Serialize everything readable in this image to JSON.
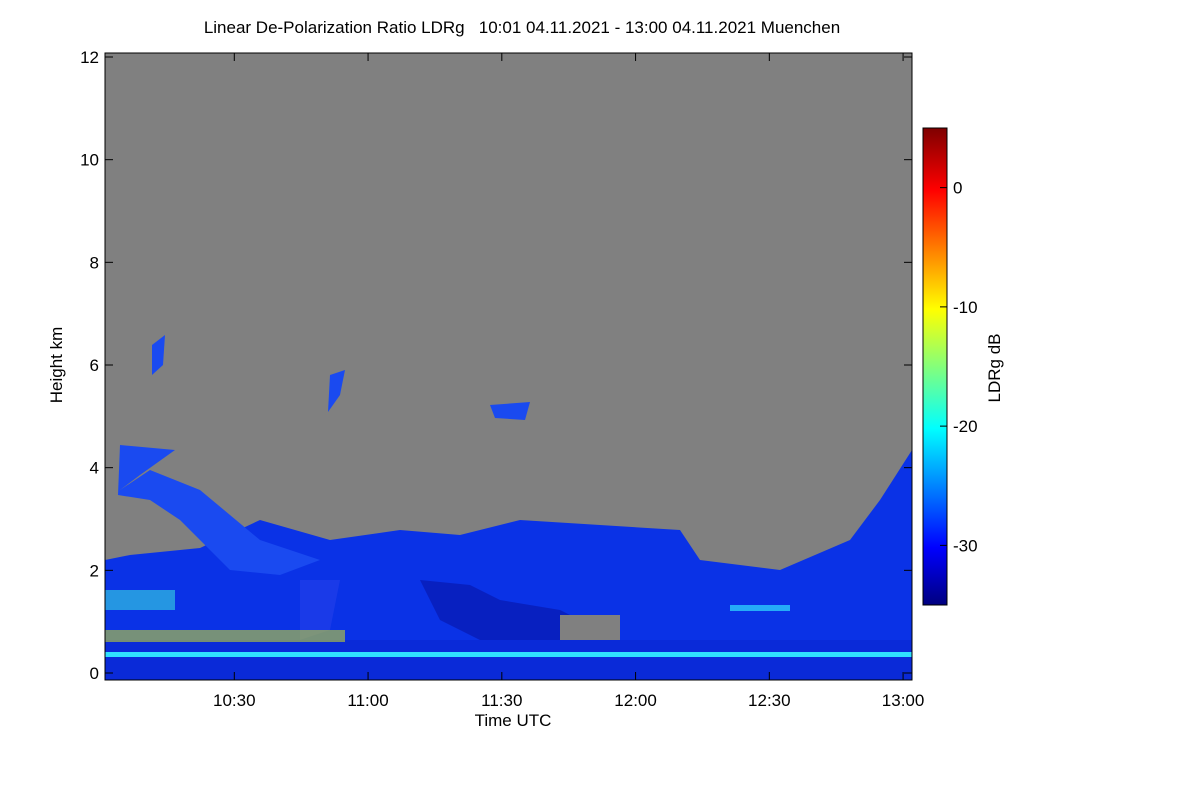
{
  "chart_data": {
    "type": "heatmap",
    "title": "Linear De-Polarization Ratio LDRg   10:01 04.11.2021 - 13:00 04.11.2021 Muenchen",
    "x_label": "Time UTC",
    "y_label": "Height km",
    "colorbar_label": "LDRg dB",
    "xlim": [
      601,
      782
    ],
    "xticks": [
      {
        "value": 630,
        "label": "10:30"
      },
      {
        "value": 660,
        "label": "11:00"
      },
      {
        "value": 690,
        "label": "11:30"
      },
      {
        "value": 720,
        "label": "12:00"
      },
      {
        "value": 750,
        "label": "12:30"
      },
      {
        "value": 780,
        "label": "13:00"
      }
    ],
    "ylim": [
      0,
      12
    ],
    "yticks": [
      0,
      2,
      4,
      6,
      8,
      10,
      12
    ],
    "clim": [
      -35,
      5
    ],
    "cticks": [
      0,
      -10,
      -20,
      -30
    ]
  }
}
